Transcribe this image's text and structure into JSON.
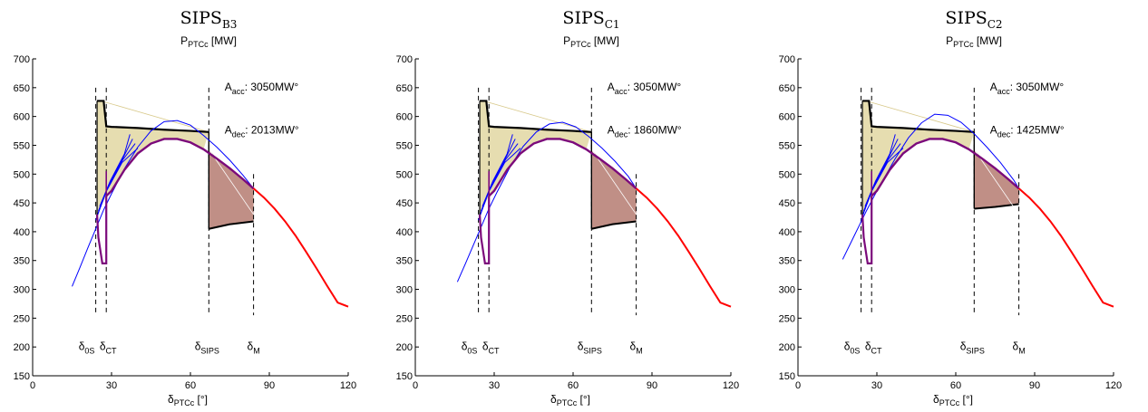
{
  "chart_data": [
    {
      "type": "line",
      "title_main": "SIPS",
      "title_sub": "B3",
      "ylabel_main": "P",
      "ylabel_sub": "PTCc",
      "ylabel_unit": " [MW]",
      "xlabel_main": "δ",
      "xlabel_sub": "PTCc",
      "xlabel_unit": " [°]",
      "xlim": [
        0,
        120
      ],
      "ylim": [
        150,
        700
      ],
      "xticks": [
        0,
        30,
        60,
        90,
        120
      ],
      "yticks": [
        150,
        200,
        250,
        300,
        350,
        400,
        450,
        500,
        550,
        600,
        650,
        700
      ],
      "A_acc_label": "A",
      "A_acc_sub": "acc",
      "A_acc_value": ": 3050MW°",
      "A_dec_label": "A",
      "A_dec_sub": "dec",
      "A_dec_value": ": 2013MW°",
      "delta_markers": [
        {
          "main": "δ",
          "sub": "0S",
          "x": 24
        },
        {
          "main": "δ",
          "sub": "CT",
          "x": 28
        },
        {
          "main": "δ",
          "sub": "SIPS",
          "x": 67
        },
        {
          "main": "δ",
          "sub": "M",
          "x": 84
        }
      ],
      "series": [
        {
          "color": "#ff0000",
          "x": [
            84,
            88,
            92,
            96,
            100,
            104,
            108,
            112,
            116,
            120
          ],
          "y": [
            475,
            459,
            440,
            418,
            393,
            365,
            336,
            306,
            277,
            270
          ]
        },
        {
          "color": "#0000ff",
          "x": [
            15,
            18,
            21,
            24,
            27,
            30,
            35,
            40,
            45,
            50,
            55,
            60,
            65,
            70,
            75,
            80,
            84
          ],
          "y": [
            305,
            338,
            372,
            405,
            438,
            466,
            510,
            547,
            575,
            591,
            593,
            585,
            567,
            547,
            524,
            498,
            475
          ]
        },
        {
          "color": "#7b0a7b",
          "x": [
            28,
            30,
            35,
            40,
            45,
            50,
            55,
            60,
            65,
            70,
            75,
            80,
            84
          ],
          "y": [
            462,
            471,
            508,
            536,
            553,
            561,
            561,
            555,
            543,
            527,
            510,
            491,
            475
          ]
        },
        {
          "color": "#000000",
          "x": [
            24.5,
            27,
            28,
            30,
            40,
            50,
            60,
            67
          ],
          "y": [
            627,
            627,
            583,
            582,
            580,
            577,
            575,
            573
          ]
        }
      ]
    },
    {
      "type": "line",
      "title_main": "SIPS",
      "title_sub": "C1",
      "ylabel_main": "P",
      "ylabel_sub": "PTCc",
      "ylabel_unit": " [MW]",
      "xlabel_main": "δ",
      "xlabel_sub": "PTCc",
      "xlabel_unit": " [°]",
      "xlim": [
        0,
        120
      ],
      "ylim": [
        150,
        700
      ],
      "xticks": [
        0,
        30,
        60,
        90,
        120
      ],
      "yticks": [
        150,
        200,
        250,
        300,
        350,
        400,
        450,
        500,
        550,
        600,
        650,
        700
      ],
      "A_acc_label": "A",
      "A_acc_sub": "acc",
      "A_acc_value": ": 3050MW°",
      "A_dec_label": "A",
      "A_dec_sub": "dec",
      "A_dec_value": ": 1860MW°",
      "delta_markers": [
        {
          "main": "δ",
          "sub": "0S",
          "x": 24
        },
        {
          "main": "δ",
          "sub": "CT",
          "x": 28
        },
        {
          "main": "δ",
          "sub": "SIPS",
          "x": 67
        },
        {
          "main": "δ",
          "sub": "M",
          "x": 84
        }
      ],
      "series": [
        {
          "color": "#ff0000",
          "x": [
            84,
            88,
            92,
            96,
            100,
            104,
            108,
            112,
            116,
            120
          ],
          "y": [
            475,
            459,
            440,
            418,
            393,
            365,
            336,
            306,
            277,
            270
          ]
        },
        {
          "color": "#0000ff",
          "x": [
            16,
            19,
            22,
            25,
            28,
            31,
            36,
            41,
            46,
            51,
            56,
            61,
            66,
            71,
            76,
            81,
            84
          ],
          "y": [
            313,
            344,
            376,
            408,
            440,
            468,
            512,
            548,
            573,
            587,
            590,
            582,
            565,
            545,
            522,
            496,
            475
          ]
        },
        {
          "color": "#7b0a7b",
          "x": [
            28,
            30,
            35,
            40,
            45,
            50,
            55,
            60,
            65,
            70,
            75,
            80,
            84
          ],
          "y": [
            462,
            471,
            508,
            536,
            553,
            561,
            561,
            555,
            543,
            527,
            510,
            491,
            475
          ]
        },
        {
          "color": "#000000",
          "x": [
            24.5,
            27,
            28,
            30,
            40,
            50,
            60,
            67
          ],
          "y": [
            627,
            627,
            583,
            582,
            580,
            577,
            575,
            573
          ]
        }
      ]
    },
    {
      "type": "line",
      "title_main": "SIPS",
      "title_sub": "C2",
      "ylabel_main": "P",
      "ylabel_sub": "PTCc",
      "ylabel_unit": " [MW]",
      "xlabel_main": "δ",
      "xlabel_sub": "PTCc",
      "xlabel_unit": " [°]",
      "xlim": [
        0,
        120
      ],
      "ylim": [
        150,
        700
      ],
      "xticks": [
        0,
        30,
        60,
        90,
        120
      ],
      "yticks": [
        150,
        200,
        250,
        300,
        350,
        400,
        450,
        500,
        550,
        600,
        650,
        700
      ],
      "A_acc_label": "A",
      "A_acc_sub": "acc",
      "A_acc_value": ": 3050MW°",
      "A_dec_label": "A",
      "A_dec_sub": "dec",
      "A_dec_value": ": 1425MW°",
      "delta_markers": [
        {
          "main": "δ",
          "sub": "0S",
          "x": 24
        },
        {
          "main": "δ",
          "sub": "CT",
          "x": 28
        },
        {
          "main": "δ",
          "sub": "SIPS",
          "x": 67
        },
        {
          "main": "δ",
          "sub": "M",
          "x": 84
        }
      ],
      "series": [
        {
          "color": "#ff0000",
          "x": [
            84,
            88,
            92,
            96,
            100,
            104,
            108,
            112,
            116,
            120
          ],
          "y": [
            475,
            459,
            440,
            418,
            393,
            365,
            336,
            306,
            277,
            270
          ]
        },
        {
          "color": "#0000ff",
          "x": [
            17,
            20,
            23,
            26,
            29,
            32,
            37,
            42,
            47,
            52,
            57,
            62,
            67,
            72,
            77,
            82,
            84
          ],
          "y": [
            352,
            380,
            408,
            436,
            462,
            487,
            527,
            563,
            589,
            604,
            602,
            590,
            570,
            546,
            520,
            490,
            475
          ]
        },
        {
          "color": "#7b0a7b",
          "x": [
            28,
            30,
            35,
            40,
            45,
            50,
            55,
            60,
            65,
            70,
            75,
            80,
            84
          ],
          "y": [
            462,
            471,
            508,
            536,
            553,
            561,
            561,
            555,
            543,
            527,
            510,
            491,
            475
          ]
        },
        {
          "color": "#000000",
          "x": [
            24.5,
            27,
            28,
            30,
            40,
            50,
            60,
            67
          ],
          "y": [
            627,
            627,
            583,
            582,
            580,
            577,
            575,
            573
          ]
        }
      ]
    }
  ]
}
